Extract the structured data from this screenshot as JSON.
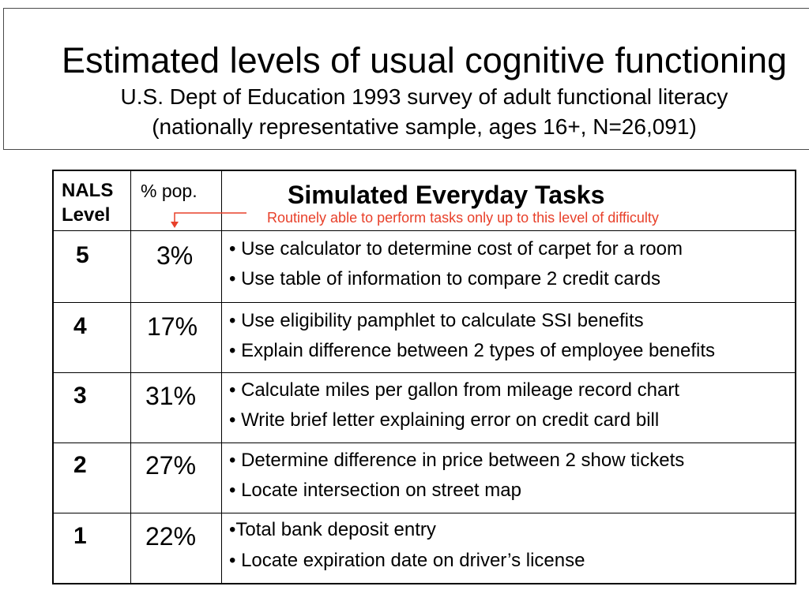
{
  "header": {
    "title": "Estimated levels of usual cognitive functioning",
    "subtitle_line1": "U.S. Dept of Education 1993 survey of adult functional literacy",
    "subtitle_line2": "(nationally representative sample, ages 16+, N=26,091)"
  },
  "table": {
    "col_level_line1": "NALS",
    "col_level_line2": "Level",
    "col_pct": "% pop.",
    "col_tasks": "Simulated Everyday Tasks",
    "annotation": "Routinely able to perform tasks only up to this level of difficulty",
    "annotation_color": "#e8402a",
    "rows": [
      {
        "level": "5",
        "pct": "3%",
        "task1": "• Use calculator to determine cost of carpet for a room",
        "task2": "• Use table of information to compare 2 credit cards"
      },
      {
        "level": "4",
        "pct": "17%",
        "task1": "• Use eligibility pamphlet to calculate SSI benefits",
        "task2": "• Explain difference between 2 types of employee benefits"
      },
      {
        "level": "3",
        "pct": "31%",
        "task1": "• Calculate miles per gallon from mileage record chart",
        "task2": "• Write brief letter explaining error on credit card bill"
      },
      {
        "level": "2",
        "pct": "27%",
        "task1": "• Determine difference in price between 2 show tickets",
        "task2": "• Locate intersection on street map"
      },
      {
        "level": "1",
        "pct": "22%",
        "task1": "•Total bank deposit entry",
        "task2": "• Locate expiration date on driver’s license"
      }
    ]
  }
}
